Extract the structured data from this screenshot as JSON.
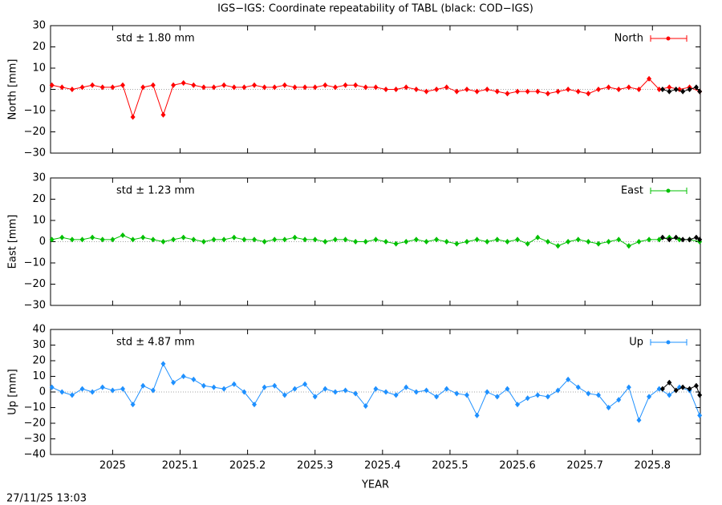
{
  "title": "IGS−IGS: Coordinate repeatability of TABL (black: COD−IGS)",
  "timestamp": "27/11/25 13:03",
  "chart_data": [
    {
      "type": "line",
      "ylabel": "North [mm]",
      "annotation": "std ± 1.80 mm",
      "annotation_color": "#ff0000",
      "xlim": [
        2024.908,
        2025.871
      ],
      "xticks": [
        2025,
        2025.1,
        2025.2,
        2025.3,
        2025.4,
        2025.5,
        2025.6,
        2025.7,
        2025.8
      ],
      "ylim": [
        -30,
        30
      ],
      "yticks": [
        {
          "value": -30,
          "label": "−30"
        },
        {
          "value": -20,
          "label": "−20"
        },
        {
          "value": -10,
          "label": "−10"
        },
        0,
        10,
        20,
        30
      ],
      "series": [
        {
          "name": "North",
          "color": "#ff0000",
          "x": [
            2024.91,
            2024.925,
            2024.94,
            2024.955,
            2024.97,
            2024.985,
            2025.0,
            2025.015,
            2025.03,
            2025.045,
            2025.06,
            2025.075,
            2025.09,
            2025.105,
            2025.12,
            2025.135,
            2025.15,
            2025.165,
            2025.18,
            2025.195,
            2025.21,
            2025.225,
            2025.24,
            2025.255,
            2025.27,
            2025.285,
            2025.3,
            2025.315,
            2025.33,
            2025.345,
            2025.36,
            2025.375,
            2025.39,
            2025.405,
            2025.42,
            2025.435,
            2025.45,
            2025.465,
            2025.48,
            2025.495,
            2025.51,
            2025.525,
            2025.54,
            2025.555,
            2025.57,
            2025.585,
            2025.6,
            2025.615,
            2025.63,
            2025.645,
            2025.66,
            2025.675,
            2025.69,
            2025.705,
            2025.72,
            2025.735,
            2025.75,
            2025.765,
            2025.78,
            2025.795,
            2025.81,
            2025.825,
            2025.84,
            2025.855,
            2025.87
          ],
          "values": [
            2,
            1,
            0,
            1,
            2,
            1,
            1,
            2,
            -13,
            1,
            2,
            -12,
            2,
            3,
            2,
            1,
            1,
            2,
            1,
            1,
            2,
            1,
            1,
            2,
            1,
            1,
            1,
            2,
            1,
            2,
            2,
            1,
            1,
            0,
            0,
            1,
            0,
            -1,
            0,
            1,
            -1,
            0,
            -1,
            0,
            -1,
            -2,
            -1,
            -1,
            -1,
            -2,
            -1,
            0,
            -1,
            -2,
            0,
            1,
            0,
            1,
            0,
            5,
            0,
            1,
            0,
            1,
            -1
          ]
        },
        {
          "color": "#000000",
          "x": [
            2025.815,
            2025.825,
            2025.835,
            2025.845,
            2025.855,
            2025.865,
            2025.87
          ],
          "values": [
            0,
            -1,
            0,
            -1,
            0,
            1,
            -1
          ]
        }
      ]
    },
    {
      "type": "line",
      "ylabel": "East [mm]",
      "annotation": "std ± 1.23 mm",
      "annotation_color": "#00c000",
      "xlim": [
        2024.908,
        2025.871
      ],
      "xticks": [
        2025,
        2025.1,
        2025.2,
        2025.3,
        2025.4,
        2025.5,
        2025.6,
        2025.7,
        2025.8
      ],
      "ylim": [
        -30,
        30
      ],
      "yticks": [
        {
          "value": -30,
          "label": "−30"
        },
        {
          "value": -20,
          "label": "−20"
        },
        {
          "value": -10,
          "label": "−10"
        },
        0,
        10,
        20,
        30
      ],
      "series": [
        {
          "name": "East",
          "color": "#00c000",
          "x": [
            2024.91,
            2024.925,
            2024.94,
            2024.955,
            2024.97,
            2024.985,
            2025.0,
            2025.015,
            2025.03,
            2025.045,
            2025.06,
            2025.075,
            2025.09,
            2025.105,
            2025.12,
            2025.135,
            2025.15,
            2025.165,
            2025.18,
            2025.195,
            2025.21,
            2025.225,
            2025.24,
            2025.255,
            2025.27,
            2025.285,
            2025.3,
            2025.315,
            2025.33,
            2025.345,
            2025.36,
            2025.375,
            2025.39,
            2025.405,
            2025.42,
            2025.435,
            2025.45,
            2025.465,
            2025.48,
            2025.495,
            2025.51,
            2025.525,
            2025.54,
            2025.555,
            2025.57,
            2025.585,
            2025.6,
            2025.615,
            2025.63,
            2025.645,
            2025.66,
            2025.675,
            2025.69,
            2025.705,
            2025.72,
            2025.735,
            2025.75,
            2025.765,
            2025.78,
            2025.795,
            2025.81,
            2025.825,
            2025.84,
            2025.855,
            2025.87
          ],
          "values": [
            1,
            2,
            1,
            1,
            2,
            1,
            1,
            3,
            1,
            2,
            1,
            0,
            1,
            2,
            1,
            0,
            1,
            1,
            2,
            1,
            1,
            0,
            1,
            1,
            2,
            1,
            1,
            0,
            1,
            1,
            0,
            0,
            1,
            0,
            -1,
            0,
            1,
            0,
            1,
            0,
            -1,
            0,
            1,
            0,
            1,
            0,
            1,
            -1,
            2,
            0,
            -2,
            0,
            1,
            0,
            -1,
            0,
            1,
            -2,
            0,
            1,
            1,
            2,
            1,
            1,
            0
          ]
        },
        {
          "color": "#000000",
          "x": [
            2025.815,
            2025.825,
            2025.835,
            2025.845,
            2025.855,
            2025.865,
            2025.87
          ],
          "values": [
            2,
            1,
            2,
            1,
            1,
            2,
            1
          ]
        }
      ]
    },
    {
      "type": "line",
      "ylabel": "Up [mm]",
      "xlabel": "YEAR",
      "annotation": "std ± 4.87 mm",
      "annotation_color": "#1e90ff",
      "xlim": [
        2024.908,
        2025.871
      ],
      "xticks": [
        2025,
        2025.1,
        2025.2,
        2025.3,
        2025.4,
        2025.5,
        2025.6,
        2025.7,
        2025.8
      ],
      "ylim": [
        -40,
        40
      ],
      "yticks": [
        {
          "value": -40,
          "label": "−40"
        },
        {
          "value": -30,
          "label": "−30"
        },
        {
          "value": -20,
          "label": "−20"
        },
        {
          "value": -10,
          "label": "−10"
        },
        0,
        10,
        20,
        30,
        40
      ],
      "series": [
        {
          "name": "Up",
          "color": "#1e90ff",
          "x": [
            2024.91,
            2024.925,
            2024.94,
            2024.955,
            2024.97,
            2024.985,
            2025.0,
            2025.015,
            2025.03,
            2025.045,
            2025.06,
            2025.075,
            2025.09,
            2025.105,
            2025.12,
            2025.135,
            2025.15,
            2025.165,
            2025.18,
            2025.195,
            2025.21,
            2025.225,
            2025.24,
            2025.255,
            2025.27,
            2025.285,
            2025.3,
            2025.315,
            2025.33,
            2025.345,
            2025.36,
            2025.375,
            2025.39,
            2025.405,
            2025.42,
            2025.435,
            2025.45,
            2025.465,
            2025.48,
            2025.495,
            2025.51,
            2025.525,
            2025.54,
            2025.555,
            2025.57,
            2025.585,
            2025.6,
            2025.615,
            2025.63,
            2025.645,
            2025.66,
            2025.675,
            2025.69,
            2025.705,
            2025.72,
            2025.735,
            2025.75,
            2025.765,
            2025.78,
            2025.795,
            2025.81,
            2025.825,
            2025.84,
            2025.855,
            2025.87
          ],
          "values": [
            3,
            0,
            -2,
            2,
            0,
            3,
            1,
            2,
            -8,
            4,
            1,
            18,
            6,
            10,
            8,
            4,
            3,
            2,
            5,
            0,
            -8,
            3,
            4,
            -2,
            2,
            5,
            -3,
            2,
            0,
            1,
            -1,
            -9,
            2,
            0,
            -2,
            3,
            0,
            1,
            -3,
            2,
            -1,
            -2,
            -15,
            0,
            -3,
            2,
            -8,
            -4,
            -2,
            -3,
            1,
            8,
            3,
            -1,
            -2,
            -10,
            -5,
            3,
            -18,
            -3,
            2,
            -2,
            3,
            1,
            -15
          ]
        },
        {
          "color": "#000000",
          "x": [
            2025.815,
            2025.825,
            2025.835,
            2025.845,
            2025.855,
            2025.865,
            2025.87
          ],
          "values": [
            2,
            6,
            1,
            3,
            2,
            4,
            -2
          ]
        }
      ]
    }
  ]
}
